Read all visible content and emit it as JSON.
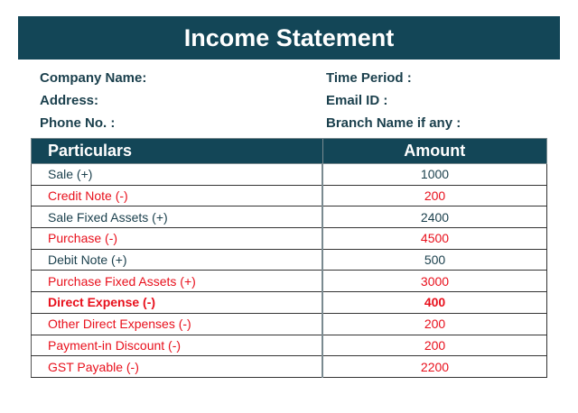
{
  "title": "Income Statement",
  "fields": {
    "company": "Company Name:",
    "address": "Address:",
    "phone": "Phone No. :",
    "period": "Time Period :",
    "email": "Email ID :",
    "branch": "Branch Name if any :"
  },
  "table": {
    "headers": [
      "Particulars",
      "Amount"
    ],
    "rows": [
      {
        "label": "Sale (+)",
        "amount": "1000",
        "color": "#1a3f4c"
      },
      {
        "label": "Credit Note (-)",
        "amount": "200",
        "color": "#e8101c"
      },
      {
        "label": "Sale Fixed Assets (+)",
        "amount": "2400",
        "color": "#1a3f4c"
      },
      {
        "label": "Purchase (-)",
        "amount": "4500",
        "color": "#e8101c"
      },
      {
        "label": "Debit Note (+)",
        "amount": "500",
        "color": "#1a3f4c"
      },
      {
        "label": "Purchase Fixed Assets (+)",
        "amount": "3000",
        "color": "#e8101c"
      },
      {
        "label": "Direct Expense (-)",
        "amount": "400",
        "color": "#e8101c"
      },
      {
        "label": "Other Direct Expenses (-)",
        "amount": "200",
        "color": "#e8101c"
      },
      {
        "label": "Payment-in Discount (-)",
        "amount": "200",
        "color": "#e8101c"
      },
      {
        "label": "GST Payable (-)",
        "amount": "2200",
        "color": "#e8101c"
      }
    ]
  },
  "colors": {
    "header_bg": "#134657",
    "positive": "#1a3f4c",
    "negative": "#e8101c"
  }
}
